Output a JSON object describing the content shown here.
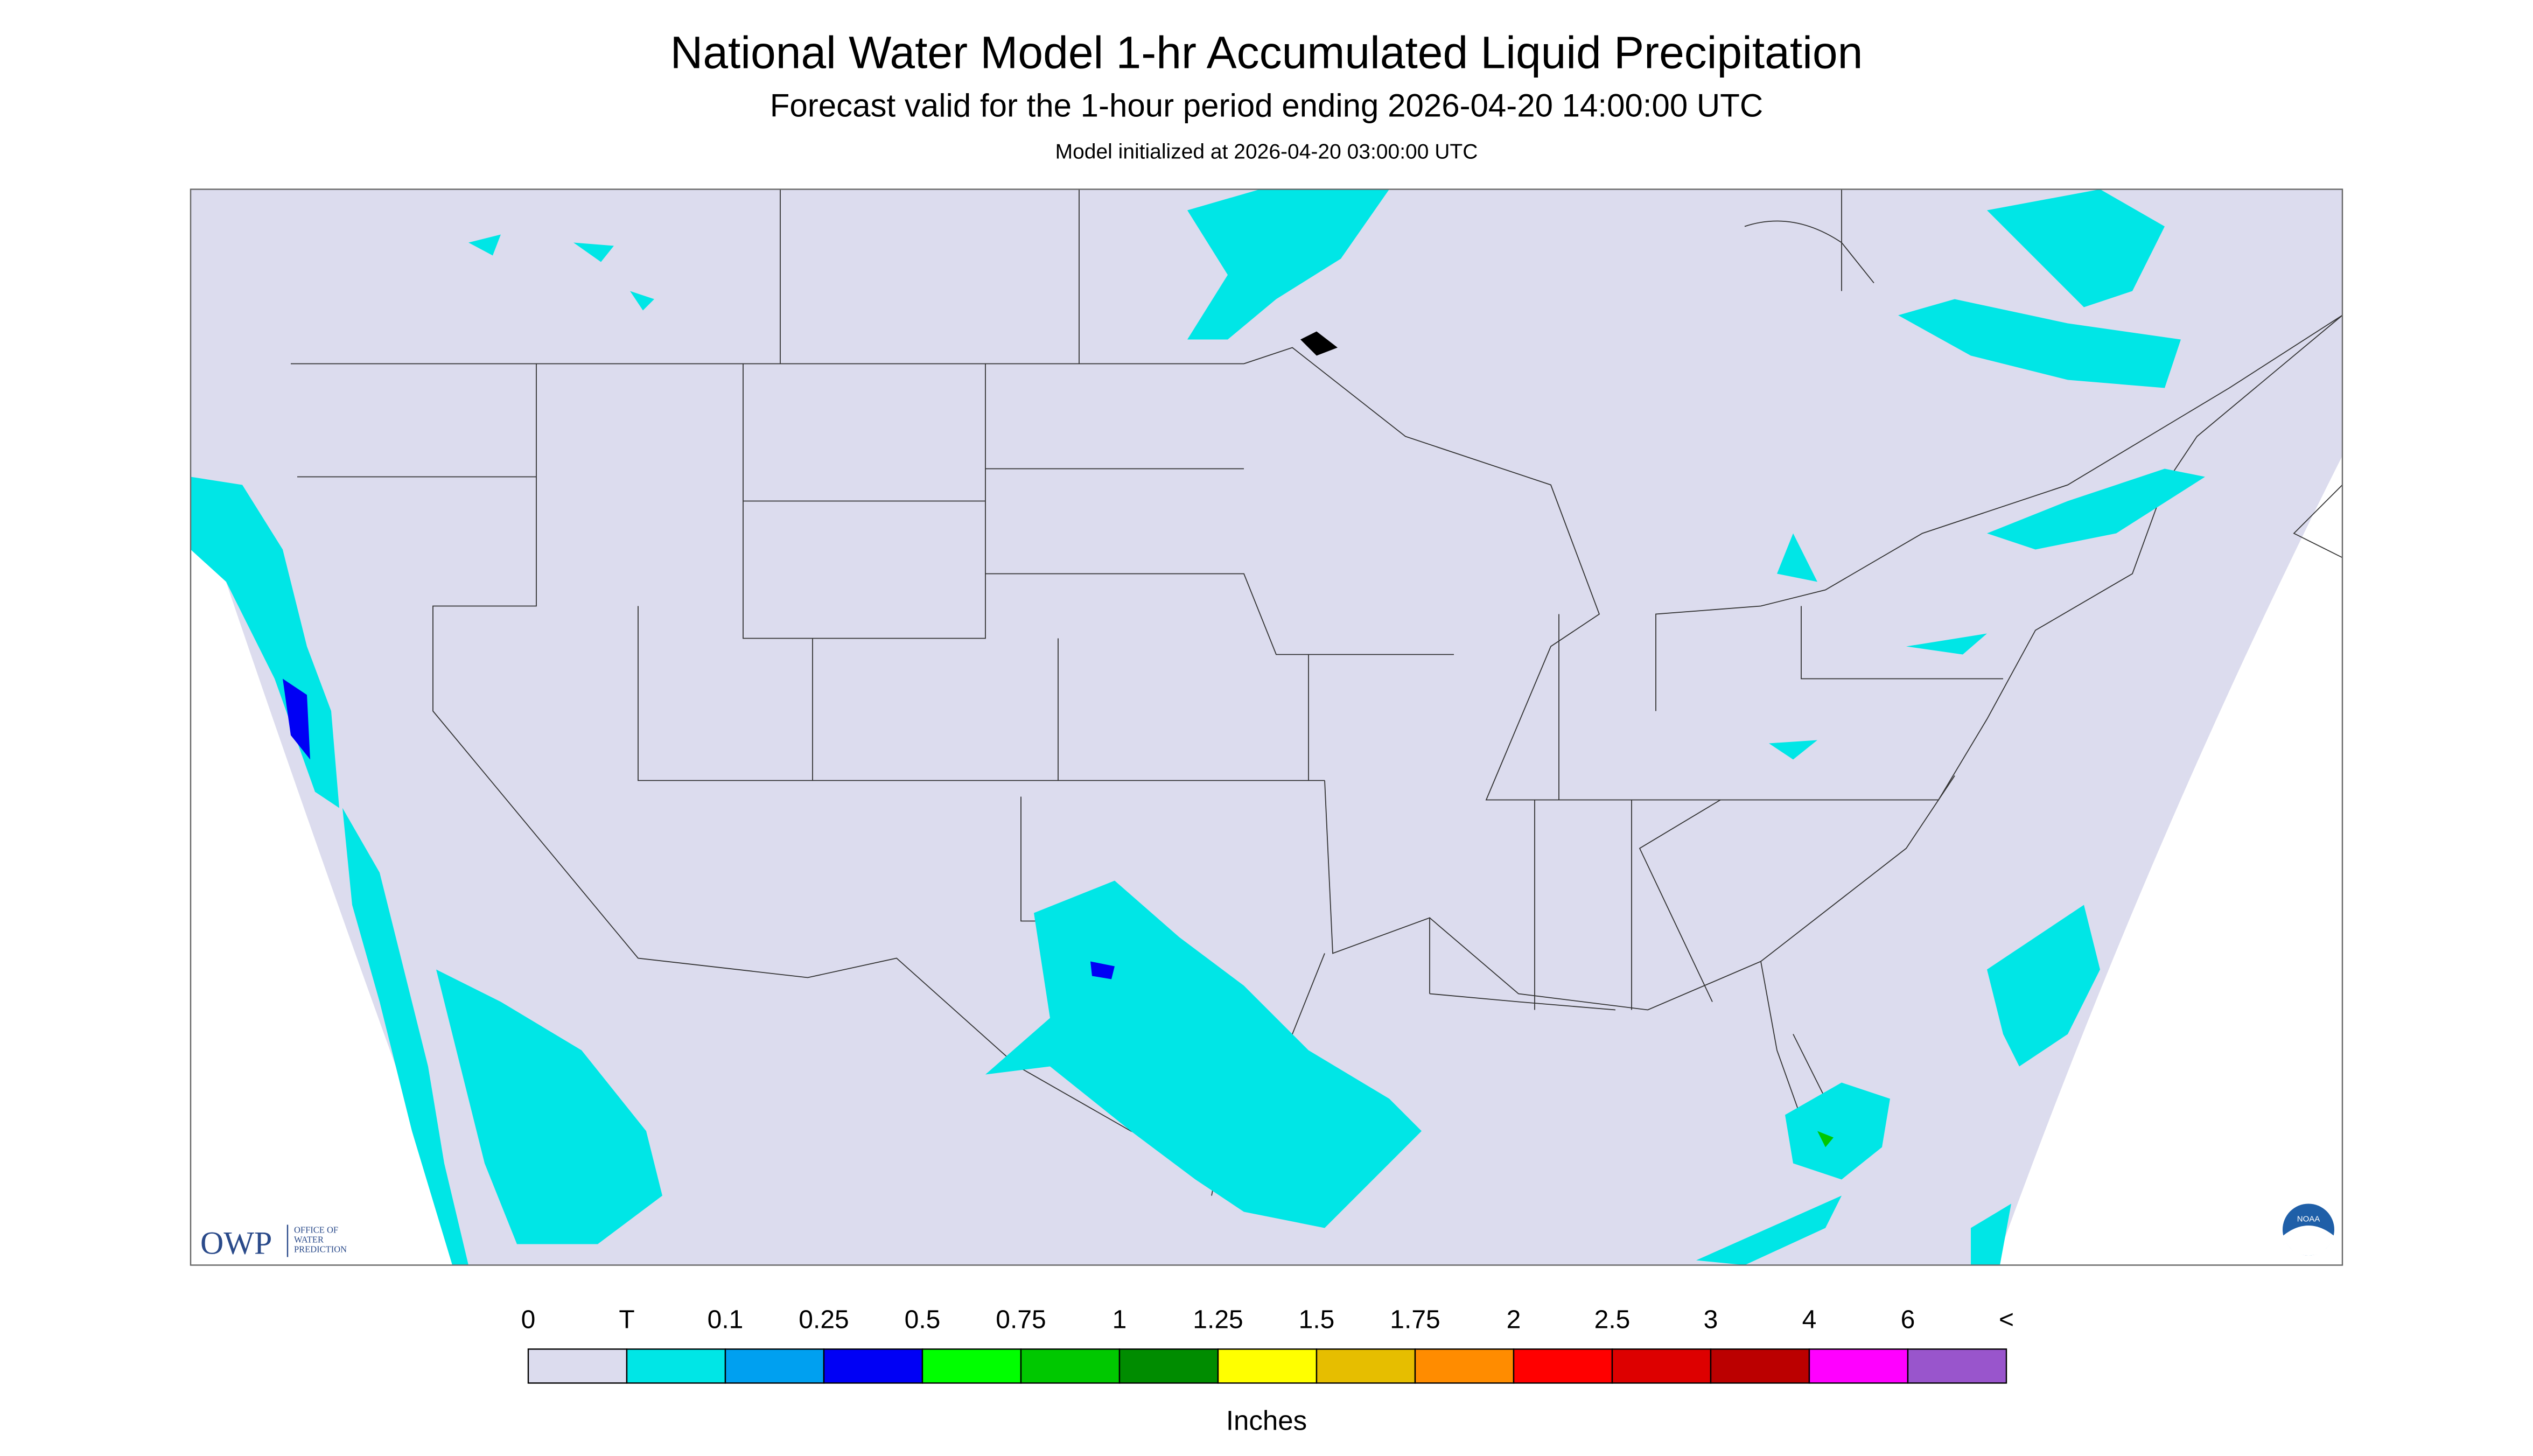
{
  "header": {
    "title": "National Water Model 1-hr Accumulated Liquid Precipitation",
    "subtitle": "Forecast valid for the 1-hour period ending 2026-04-20 14:00:00 UTC",
    "initialized": "Model initialized at 2026-04-20 03:00:00 UTC"
  },
  "legend": {
    "labels": [
      "0",
      "T",
      "0.1",
      "0.25",
      "0.5",
      "0.75",
      "1",
      "1.25",
      "1.5",
      "1.75",
      "2",
      "2.5",
      "3",
      "4",
      "6",
      "<"
    ],
    "colors": [
      "#dcdcee",
      "#00e6e6",
      "#00a0f0",
      "#0000f5",
      "#00ff00",
      "#00c800",
      "#008c00",
      "#ffff00",
      "#e6be00",
      "#ff8c00",
      "#ff0000",
      "#dd0000",
      "#bb0000",
      "#ff00ff",
      "#9955cc"
    ],
    "unit": "Inches"
  },
  "logos": {
    "owp": "OWP",
    "owp_name": [
      "OFFICE OF",
      "WATER",
      "PREDICTION"
    ],
    "noaa": "NOAA"
  }
}
